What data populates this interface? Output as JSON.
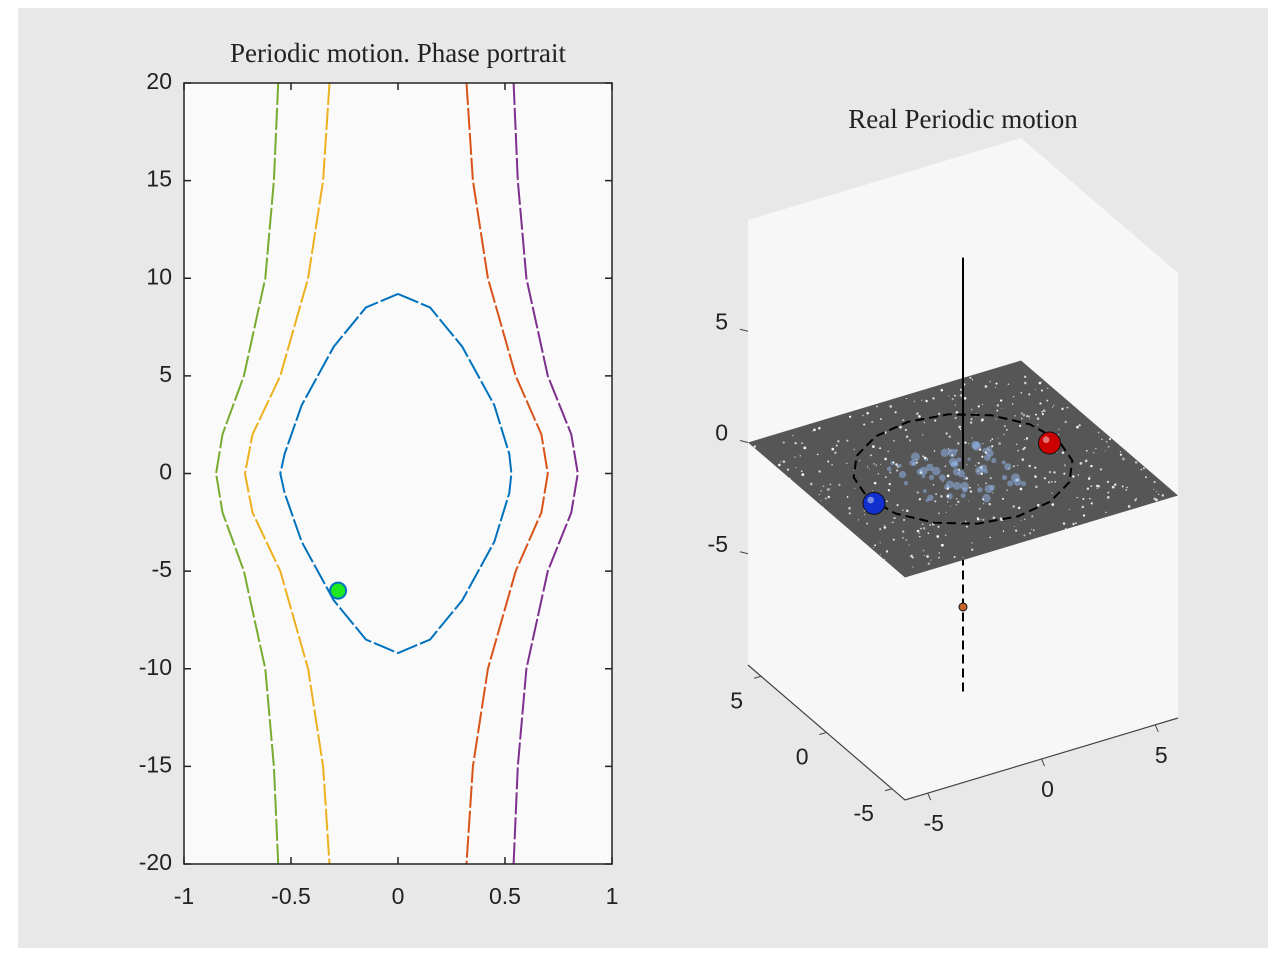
{
  "chart_data": [
    {
      "type": "line",
      "title": "Periodic motion. Phase portrait",
      "xlim": [
        -1,
        1
      ],
      "ylim": [
        -20,
        20
      ],
      "xticks": [
        -1,
        -0.5,
        0,
        0.5,
        1
      ],
      "yticks": [
        -20,
        -15,
        -10,
        -5,
        0,
        5,
        10,
        15,
        20
      ],
      "series": [
        {
          "color": "#0072bd",
          "x": [
            0,
            0.15,
            0.3,
            0.45,
            0.52,
            0.53,
            0.52,
            0.45,
            0.3,
            0.15,
            0,
            -0.15,
            -0.3,
            -0.45,
            -0.53,
            -0.55,
            -0.53,
            -0.45,
            -0.3,
            -0.15,
            0
          ],
          "values": [
            9.2,
            8.5,
            6.5,
            3.5,
            1,
            0,
            -1,
            -3.5,
            -6.5,
            -8.5,
            -9.2,
            -8.5,
            -6.5,
            -3.5,
            -1,
            0,
            1,
            3.5,
            6.5,
            8.5,
            9.2
          ]
        },
        {
          "color": "#77ac30",
          "x": [
            -0.56,
            -0.58,
            -0.62,
            -0.72,
            -0.82,
            -0.85,
            -0.82,
            -0.72,
            -0.62,
            -0.58,
            -0.56
          ],
          "values": [
            20,
            15,
            10,
            5,
            2,
            0,
            -2,
            -5,
            -10,
            -15,
            -20
          ]
        },
        {
          "color": "#edb120",
          "x": [
            -0.32,
            -0.35,
            -0.42,
            -0.55,
            -0.68,
            -0.715,
            -0.68,
            -0.55,
            -0.42,
            -0.35,
            -0.32
          ],
          "values": [
            20,
            15,
            10,
            5,
            2,
            0,
            -2,
            -5,
            -10,
            -15,
            -20
          ]
        },
        {
          "color": "#d95319",
          "x": [
            0.32,
            0.35,
            0.42,
            0.55,
            0.67,
            0.7,
            0.67,
            0.55,
            0.42,
            0.35,
            0.32
          ],
          "values": [
            20,
            15,
            10,
            5,
            2,
            0,
            -2,
            -5,
            -10,
            -15,
            -20
          ]
        },
        {
          "color": "#7e2f8e",
          "x": [
            0.54,
            0.56,
            0.6,
            0.7,
            0.81,
            0.84,
            0.81,
            0.7,
            0.6,
            0.56,
            0.54
          ],
          "values": [
            20,
            15,
            10,
            5,
            2,
            0,
            -2,
            -5,
            -10,
            -15,
            -20
          ]
        }
      ],
      "marker": {
        "x": -0.28,
        "y": -6,
        "color": "#1ee81e",
        "edgecolor": "#0072bd"
      }
    },
    {
      "type": "scatter3d",
      "title": "Real Periodic motion",
      "xlim": [
        -6,
        6
      ],
      "ylim": [
        -6,
        6
      ],
      "zlim": [
        -10,
        10
      ],
      "xticks": [
        -5,
        0,
        5
      ],
      "yticks": [
        -5,
        0,
        5
      ],
      "zticks": [
        -5,
        0,
        5
      ],
      "surface": {
        "z": 0,
        "color": "#565656"
      },
      "series": [
        {
          "style": "line",
          "dash": true,
          "color": "#000000",
          "x": [
            0,
            0
          ],
          "y": [
            0,
            0
          ],
          "z": [
            -10,
            0
          ]
        },
        {
          "style": "marker",
          "color": "#c86428",
          "size": 4,
          "x": [
            0
          ],
          "y": [
            0
          ],
          "z": [
            -6.2
          ]
        },
        {
          "style": "line",
          "dash": true,
          "color": "#000000",
          "x": [
            4.2,
            3.88,
            2.97,
            1.61,
            0,
            -1.61,
            -2.97,
            -3.88,
            -4.2,
            -3.88,
            -2.97,
            -1.61,
            0,
            1.61,
            2.97,
            3.88,
            4.2
          ],
          "y": [
            0,
            1.61,
            2.97,
            3.88,
            4.2,
            3.88,
            2.97,
            1.61,
            0,
            -1.61,
            -2.97,
            -3.88,
            -4.2,
            -3.88,
            -2.97,
            -1.61,
            0
          ],
          "z": [
            0,
            0,
            0,
            0,
            0,
            0,
            0,
            0,
            0,
            0,
            0,
            0,
            0,
            0,
            0,
            0,
            0
          ]
        },
        {
          "style": "line",
          "dash": false,
          "color": "#000000",
          "x": [
            0,
            0
          ],
          "y": [
            0,
            0
          ],
          "z": [
            0,
            9.5
          ]
        },
        {
          "style": "marker",
          "color": "#cc0000",
          "size": 11,
          "x": [
            3.8
          ],
          "y": [
            0
          ],
          "z": [
            0
          ]
        },
        {
          "style": "marker",
          "color": "#1030d0",
          "size": 11,
          "x": [
            -4.2
          ],
          "y": [
            -0.5
          ],
          "z": [
            0
          ]
        }
      ]
    }
  ]
}
